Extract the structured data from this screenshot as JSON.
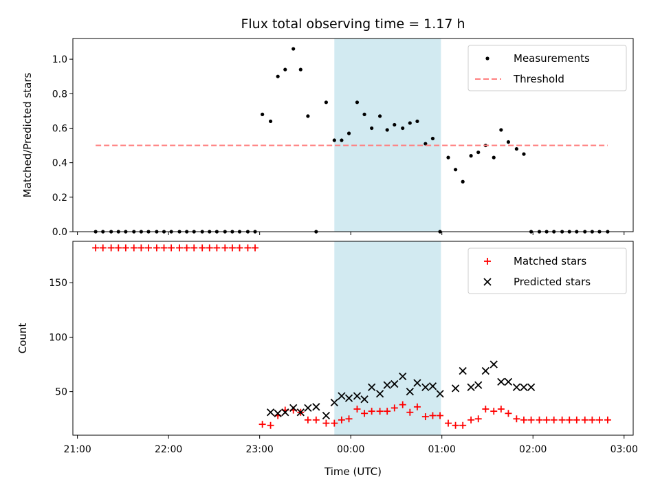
{
  "chart_data": [
    {
      "panel": "top",
      "type": "scatter",
      "title": "Flux total observing time = 1.17 h",
      "xlabel": "",
      "ylabel": "Matched/Predicted stars",
      "ylim": [
        0,
        1.12
      ],
      "yticks": [
        "0.0",
        "0.2",
        "0.4",
        "0.6",
        "0.8",
        "1.0"
      ],
      "ytick_values": [
        0,
        0.2,
        0.4,
        0.6,
        0.8,
        1.0
      ],
      "xlim_hours": [
        -3.05,
        3.1
      ],
      "shaded_span_hours": [
        -0.18,
        0.99
      ],
      "shade_color": "#add8e6",
      "grid": false,
      "legend_position": "upper right",
      "series": [
        {
          "name": "Measurements",
          "marker": "dot",
          "color": "#000000",
          "x": [
            -2.8,
            -2.72,
            -2.63,
            -2.55,
            -2.47,
            -2.38,
            -2.3,
            -2.22,
            -2.13,
            -2.05,
            -1.97,
            -1.88,
            -1.8,
            -1.72,
            -1.63,
            -1.55,
            -1.47,
            -1.38,
            -1.3,
            -1.22,
            -1.13,
            -1.05,
            -0.97,
            -0.88,
            -0.8,
            -0.72,
            -0.63,
            -0.55,
            -0.47,
            -0.38,
            -0.27,
            -0.18,
            -0.1,
            -0.02,
            0.07,
            0.15,
            0.23,
            0.32,
            0.4,
            0.48,
            0.57,
            0.65,
            0.73,
            0.82,
            0.9,
            0.98,
            1.07,
            1.15,
            1.23,
            1.32,
            1.4,
            1.48,
            1.57,
            1.65,
            1.73,
            1.82,
            1.9,
            1.98,
            2.07,
            2.15,
            2.23,
            2.32,
            2.4,
            2.48,
            2.57,
            2.65,
            2.73,
            2.82
          ],
          "y": [
            0,
            0,
            0,
            0,
            0,
            0,
            0,
            0,
            0,
            0,
            0,
            0,
            0,
            0,
            0,
            0,
            0,
            0,
            0,
            0,
            0,
            0,
            0.68,
            0.64,
            0.9,
            0.94,
            1.06,
            0.94,
            0.67,
            0,
            0.75,
            0.53,
            0.53,
            0.57,
            0.75,
            0.68,
            0.6,
            0.67,
            0.59,
            0.62,
            0.6,
            0.63,
            0.64,
            0.51,
            0.54,
            0,
            0.43,
            0.36,
            0.29,
            0.44,
            0.46,
            0.5,
            0.43,
            0.59,
            0.52,
            0.48,
            0.45,
            0,
            0,
            0,
            0,
            0,
            0,
            0,
            0,
            0,
            0,
            0
          ]
        },
        {
          "name": "Threshold",
          "type": "line",
          "style": "dashed",
          "color": "#ff7f7f",
          "x": [
            -2.8,
            2.82
          ],
          "y": [
            0.5,
            0.5
          ]
        }
      ]
    },
    {
      "panel": "bottom",
      "type": "scatter",
      "title": "",
      "xlabel": "Time (UTC)",
      "ylabel": "Count",
      "ylim": [
        10,
        188
      ],
      "yticks": [
        "50",
        "100",
        "150"
      ],
      "ytick_values": [
        50,
        100,
        150
      ],
      "xlim_hours": [
        -3.05,
        3.1
      ],
      "xticks": [
        "21:00",
        "22:00",
        "23:00",
        "00:00",
        "01:00",
        "02:00",
        "03:00"
      ],
      "xtick_values_hours": [
        -3,
        -2,
        -1,
        0,
        1,
        2,
        3
      ],
      "shaded_span_hours": [
        -0.18,
        0.99
      ],
      "shade_color": "#add8e6",
      "grid": false,
      "legend_position": "upper right",
      "series": [
        {
          "name": "Matched stars",
          "marker": "plus",
          "color": "#ff0000",
          "x": [
            -2.8,
            -2.72,
            -2.63,
            -2.55,
            -2.47,
            -2.38,
            -2.3,
            -2.22,
            -2.13,
            -2.05,
            -1.97,
            -1.88,
            -1.8,
            -1.72,
            -1.63,
            -1.55,
            -1.47,
            -1.38,
            -1.3,
            -1.22,
            -1.13,
            -1.05,
            -0.97,
            -0.88,
            -0.8,
            -0.72,
            -0.63,
            -0.55,
            -0.47,
            -0.38,
            -0.27,
            -0.18,
            -0.1,
            -0.02,
            0.07,
            0.15,
            0.23,
            0.32,
            0.4,
            0.48,
            0.57,
            0.65,
            0.73,
            0.82,
            0.9,
            0.98,
            1.07,
            1.15,
            1.23,
            1.32,
            1.4,
            1.48,
            1.57,
            1.65,
            1.73,
            1.82,
            1.9,
            1.98,
            2.07,
            2.15,
            2.23,
            2.32,
            2.4,
            2.48,
            2.57,
            2.65,
            2.73,
            2.82
          ],
          "y": [
            182,
            182,
            182,
            182,
            182,
            182,
            182,
            182,
            182,
            182,
            182,
            182,
            182,
            182,
            182,
            182,
            182,
            182,
            182,
            182,
            182,
            182,
            20,
            19,
            28,
            33,
            33,
            31,
            24,
            24,
            21,
            21,
            24,
            25,
            34,
            30,
            32,
            32,
            32,
            35,
            38,
            31,
            36,
            27,
            28,
            28,
            21,
            19,
            19,
            24,
            25,
            34,
            32,
            34,
            30,
            25,
            24,
            24,
            24,
            24,
            24,
            24,
            24,
            24,
            24,
            24,
            24,
            24
          ]
        },
        {
          "name": "Predicted stars",
          "marker": "x",
          "color": "#000000",
          "x": [
            -0.88,
            -0.8,
            -0.72,
            -0.63,
            -0.55,
            -0.47,
            -0.38,
            -0.27,
            -0.18,
            -0.1,
            -0.02,
            0.07,
            0.15,
            0.23,
            0.32,
            0.4,
            0.48,
            0.57,
            0.65,
            0.73,
            0.82,
            0.9,
            0.98,
            1.15,
            1.23,
            1.32,
            1.4,
            1.48,
            1.57,
            1.65,
            1.73,
            1.82,
            1.9,
            1.98
          ],
          "y": [
            31,
            30,
            31,
            35,
            31,
            35,
            36,
            28,
            40,
            46,
            44,
            46,
            43,
            54,
            48,
            56,
            57,
            64,
            50,
            58,
            54,
            55,
            48,
            53,
            69,
            54,
            56,
            69,
            75,
            59,
            59,
            54,
            54,
            54
          ]
        }
      ]
    }
  ]
}
